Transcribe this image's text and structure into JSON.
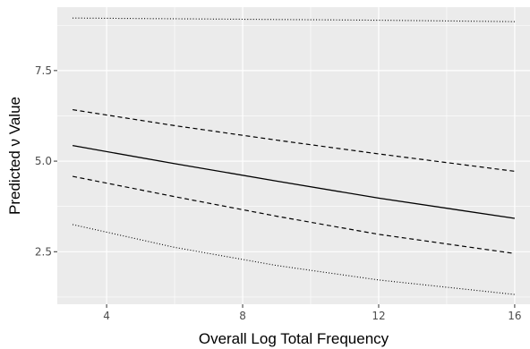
{
  "chart_data": {
    "type": "line",
    "title": "",
    "xlabel": "Overall Log Total Frequency",
    "ylabel": "Predicted ν Value",
    "xlim": [
      2.55,
      16.45
    ],
    "ylim": [
      1.05,
      9.25
    ],
    "x_ticks": [
      4,
      8,
      12,
      16
    ],
    "x_tick_labels": [
      "4",
      "8",
      "12",
      "16"
    ],
    "y_ticks": [
      2.5,
      5.0,
      7.5
    ],
    "y_tick_labels": [
      "2.5",
      "5.0",
      "7.5"
    ],
    "grid": true,
    "legend": "none",
    "panel_color": "#ebebeb",
    "grid_color": "#ffffff",
    "line_color": "#000000",
    "series": [
      {
        "linetype": "dotted",
        "x": [
          3,
          6,
          9,
          12,
          16
        ],
        "y": [
          8.95,
          8.93,
          8.91,
          8.89,
          8.85
        ]
      },
      {
        "linetype": "dashed",
        "x": [
          3,
          6,
          9,
          12,
          16
        ],
        "y": [
          6.42,
          5.98,
          5.58,
          5.2,
          4.72
        ]
      },
      {
        "linetype": "solid",
        "x": [
          3,
          6,
          9,
          12,
          16
        ],
        "y": [
          5.43,
          4.93,
          4.45,
          3.98,
          3.42
        ]
      },
      {
        "linetype": "dashed",
        "x": [
          3,
          6,
          9,
          12,
          16
        ],
        "y": [
          4.58,
          4.02,
          3.48,
          2.98,
          2.45
        ]
      },
      {
        "linetype": "dotted",
        "x": [
          3,
          6,
          9,
          12,
          16
        ],
        "y": [
          3.25,
          2.62,
          2.12,
          1.72,
          1.32
        ]
      }
    ]
  }
}
